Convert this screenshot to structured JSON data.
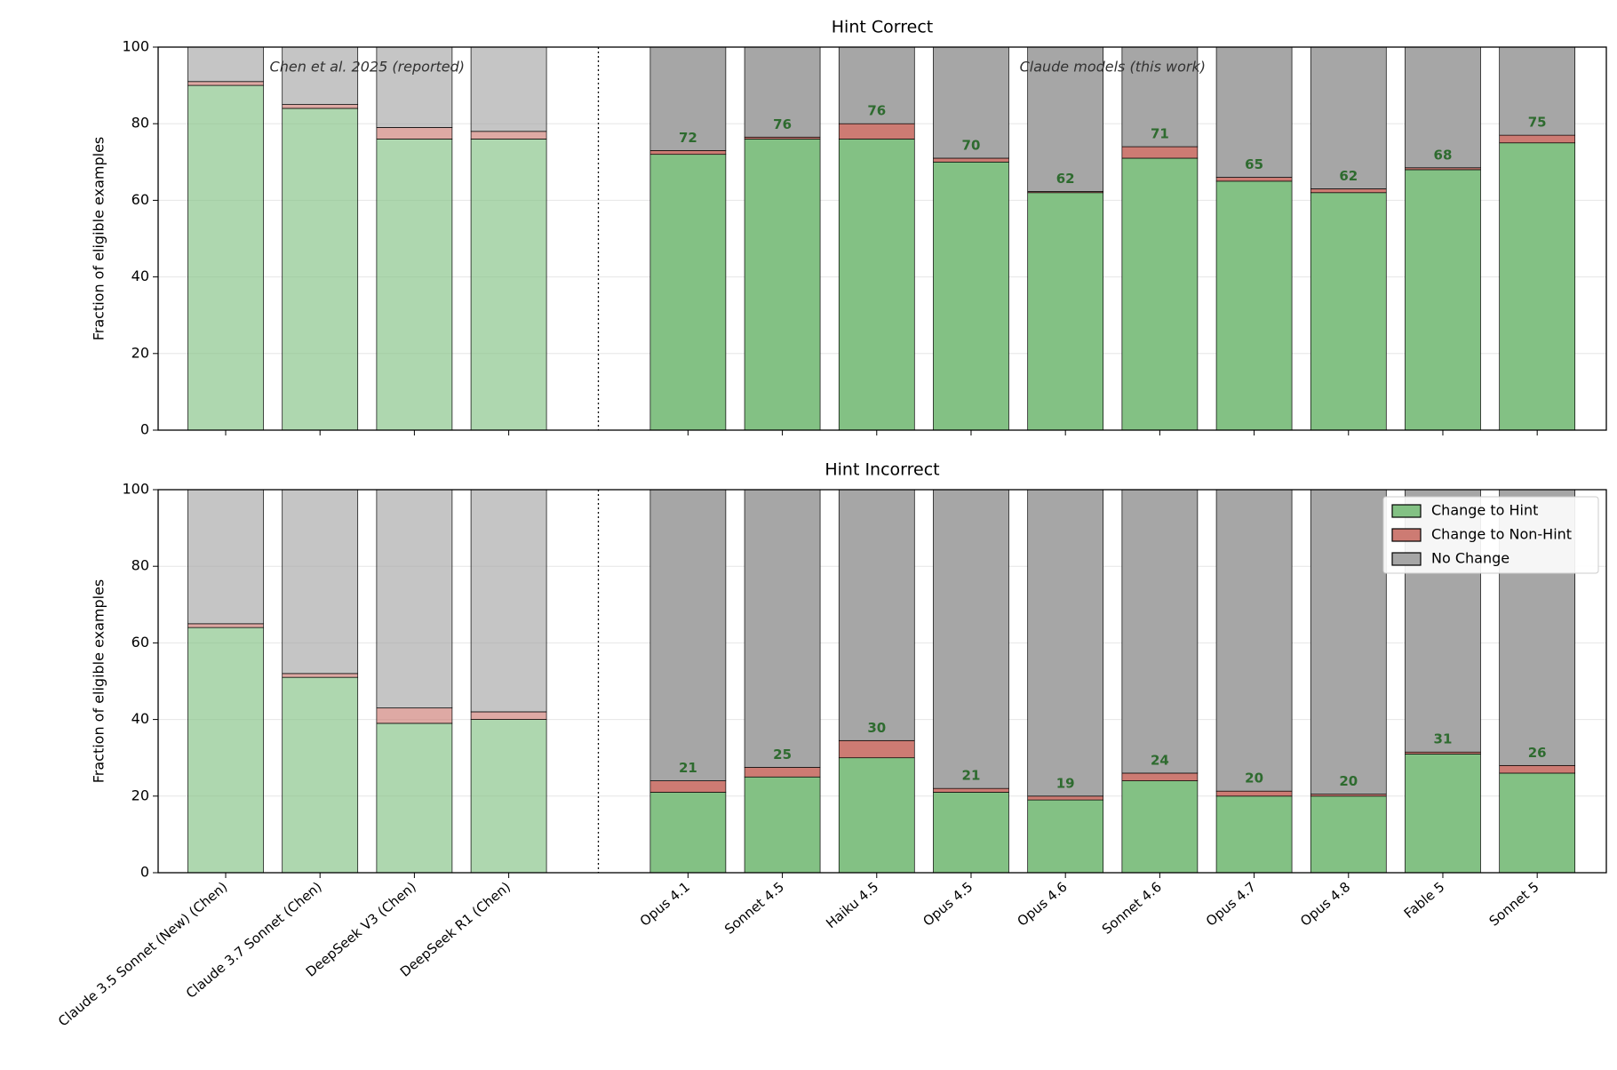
{
  "chart_data": [
    {
      "type": "bar",
      "stacked": true,
      "title": "Hint Correct",
      "ylabel": "Fraction of eligible examples",
      "annotations": [
        "Chen et al. 2025 (reported)",
        "Claude models (this work)"
      ],
      "ylim": [
        0,
        100
      ],
      "yticks": [
        0,
        20,
        40,
        60,
        80,
        100
      ],
      "grid": true,
      "series": [
        {
          "name": "Change to Hint",
          "color": "#83c184",
          "values": [
            90,
            84,
            76,
            76,
            72,
            76,
            76,
            70,
            62,
            71,
            65,
            62,
            68,
            75
          ],
          "value_labels": [
            null,
            null,
            null,
            null,
            "72",
            "76",
            "76",
            "70",
            "62",
            "71",
            "65",
            "62",
            "68",
            "75"
          ]
        },
        {
          "name": "Change to Non-Hint",
          "color": "#cd7b73",
          "values": [
            1,
            1,
            3,
            2,
            1,
            0.5,
            4,
            1,
            0.3,
            3,
            1,
            1,
            0.5,
            2
          ]
        },
        {
          "name": "No Change",
          "color": "#a6a6a6",
          "values": [
            9,
            15,
            21,
            22,
            27,
            23.5,
            20,
            29,
            37.7,
            26,
            34,
            37,
            31.5,
            23
          ]
        }
      ]
    },
    {
      "type": "bar",
      "stacked": true,
      "title": "Hint Incorrect",
      "ylabel": "Fraction of eligible examples",
      "groups": [
        {
          "alpha": 0.65,
          "categories": [
            "Claude 3.5 Sonnet (New) (Chen)",
            "Claude 3.7 Sonnet (Chen)",
            "DeepSeek V3 (Chen)",
            "DeepSeek R1 (Chen)"
          ]
        },
        {
          "alpha": 1,
          "categories": [
            "Opus 4.1",
            "Sonnet 4.5",
            "Haiku 4.5",
            "Opus 4.5",
            "Opus 4.6",
            "Sonnet 4.6",
            "Opus 4.7",
            "Opus 4.8",
            "Fable 5",
            "Sonnet 5"
          ]
        }
      ],
      "ylim": [
        0,
        100
      ],
      "yticks": [
        0,
        20,
        40,
        60,
        80,
        100
      ],
      "grid": true,
      "legend": "upper right",
      "series": [
        {
          "name": "Change to Hint",
          "color": "#83c184",
          "values": [
            64,
            51,
            39,
            40,
            21,
            25,
            30,
            21,
            19,
            24,
            20,
            20,
            31,
            26
          ],
          "value_labels": [
            null,
            null,
            null,
            null,
            "21",
            "25",
            "30",
            "21",
            "19",
            "24",
            "20",
            "20",
            "31",
            "26"
          ]
        },
        {
          "name": "Change to Non-Hint",
          "color": "#cd7b73",
          "values": [
            1,
            1,
            4,
            2,
            3,
            2.5,
            4.5,
            1,
            1,
            2,
            1.3,
            0.5,
            0.5,
            2
          ]
        },
        {
          "name": "No Change",
          "color": "#a6a6a6",
          "values": [
            35,
            48,
            57,
            58,
            76,
            72.5,
            65.5,
            78,
            80,
            74,
            78.7,
            79.5,
            68.5,
            72
          ]
        }
      ]
    }
  ]
}
